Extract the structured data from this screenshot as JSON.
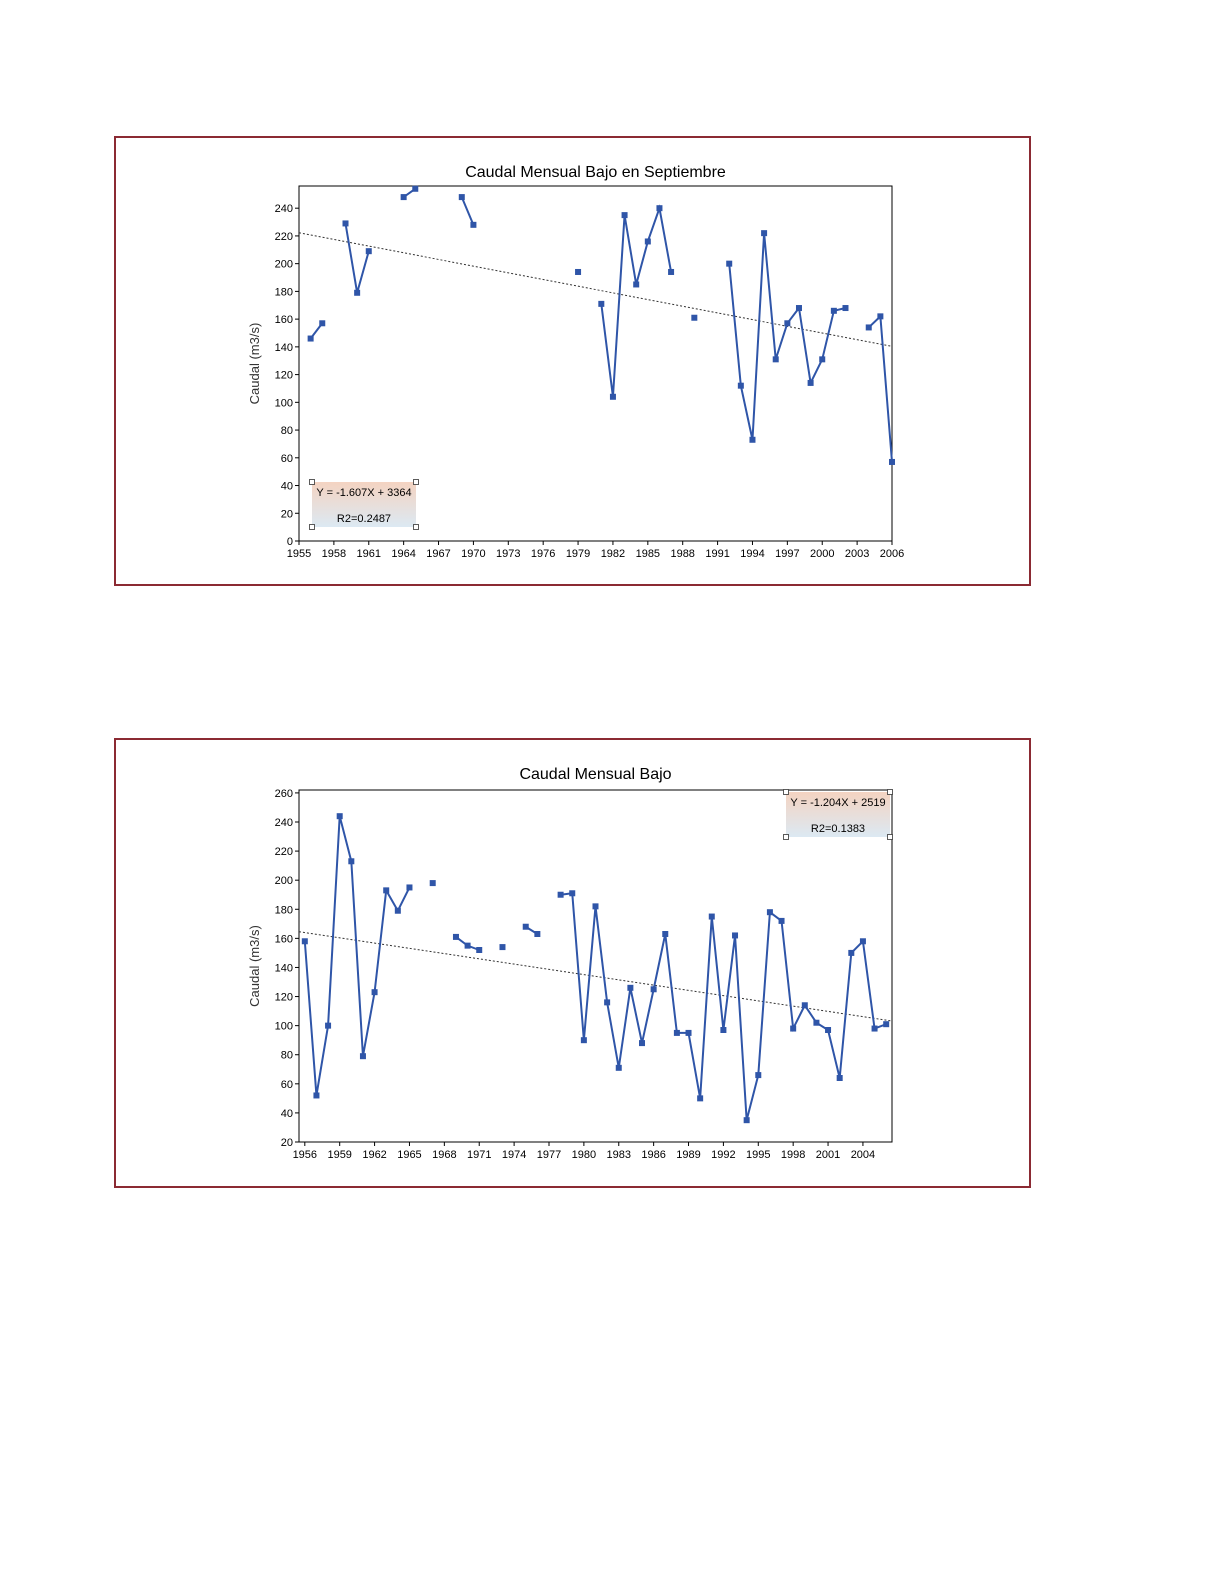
{
  "colors": {
    "border": "#8b2a33",
    "series": "#2f55a8",
    "trend": "#333333",
    "eq_top": "#f4d3c1",
    "eq_bottom": "#dce9f3"
  },
  "chart_data": [
    {
      "type": "line",
      "title": "Caudal Mensual Bajo en Septiembre",
      "ylabel": "Caudal (m3/s)",
      "xlabel": "",
      "xlim": [
        1955,
        2006
      ],
      "ylim": [
        0,
        256
      ],
      "xticks": [
        "1955",
        "1958",
        "1961",
        "1964",
        "1967",
        "1970",
        "1973",
        "1976",
        "1979",
        "1982",
        "1985",
        "1988",
        "1991",
        "1994",
        "1997",
        "2000",
        "2003",
        "2006"
      ],
      "yticks": [
        "0",
        "20",
        "40",
        "60",
        "80",
        "100",
        "120",
        "140",
        "160",
        "180",
        "200",
        "220",
        "240"
      ],
      "grid": false,
      "series": [
        {
          "x": [
            1956,
            1957,
            1958,
            1959,
            1960,
            1961,
            1962,
            1963,
            1964,
            1965,
            1966,
            1967,
            1968,
            1969,
            1970,
            1971,
            1972,
            1973,
            1974,
            1975,
            1976,
            1977,
            1978,
            1979,
            1980,
            1981,
            1982,
            1983,
            1984,
            1985,
            1986,
            1987,
            1988,
            1989,
            1990,
            1991,
            1992,
            1993,
            1994,
            1995,
            1996,
            1997,
            1998,
            1999,
            2000,
            2001,
            2002,
            2003,
            2004,
            2005,
            2006
          ],
          "y": [
            146,
            157,
            null,
            229,
            179,
            209,
            null,
            null,
            248,
            254,
            null,
            null,
            null,
            248,
            228,
            null,
            null,
            null,
            null,
            null,
            null,
            null,
            null,
            194,
            null,
            171,
            104,
            235,
            185,
            216,
            240,
            194,
            null,
            161,
            null,
            null,
            200,
            112,
            73,
            222,
            131,
            157,
            168,
            114,
            131,
            166,
            168,
            null,
            154,
            162,
            57
          ]
        }
      ],
      "trendline": {
        "slope": -1.607,
        "intercept": 3364,
        "x_start": 1955,
        "x_end": 2006
      },
      "equation": {
        "line1": "Y = -1.607X + 3364",
        "line2": "R2=0.2487",
        "placement": "bottom-left"
      }
    },
    {
      "type": "line",
      "title": "Caudal Mensual Bajo",
      "ylabel": "Caudal (m3/s)",
      "xlabel": "",
      "xlim": [
        1955.5,
        2006.5
      ],
      "ylim": [
        20,
        262
      ],
      "xticks": [
        "1956",
        "1959",
        "1962",
        "1965",
        "1968",
        "1971",
        "1974",
        "1977",
        "1980",
        "1983",
        "1986",
        "1989",
        "1992",
        "1995",
        "1998",
        "2001",
        "2004"
      ],
      "yticks": [
        "20",
        "40",
        "60",
        "80",
        "100",
        "120",
        "140",
        "160",
        "180",
        "200",
        "220",
        "240",
        "260"
      ],
      "grid": false,
      "series": [
        {
          "x": [
            1956,
            1957,
            1958,
            1959,
            1960,
            1961,
            1962,
            1963,
            1964,
            1965,
            1966,
            1967,
            1968,
            1969,
            1970,
            1971,
            1972,
            1973,
            1974,
            1975,
            1976,
            1977,
            1978,
            1979,
            1980,
            1981,
            1982,
            1983,
            1984,
            1985,
            1986,
            1987,
            1988,
            1989,
            1990,
            1991,
            1992,
            1993,
            1994,
            1995,
            1996,
            1997,
            1998,
            1999,
            2000,
            2001,
            2002,
            2003,
            2004,
            2005,
            2006
          ],
          "y": [
            158,
            52,
            100,
            244,
            213,
            79,
            123,
            193,
            179,
            195,
            null,
            198,
            null,
            161,
            155,
            152,
            null,
            154,
            null,
            168,
            163,
            null,
            190,
            191,
            90,
            182,
            116,
            71,
            126,
            88,
            125,
            163,
            95,
            95,
            50,
            175,
            97,
            162,
            35,
            66,
            178,
            172,
            98,
            114,
            102,
            97,
            64,
            150,
            158,
            98,
            101
          ]
        }
      ],
      "trendline": {
        "slope": -1.204,
        "intercept": 2519,
        "x_start": 1955.5,
        "x_end": 2006.5
      },
      "equation": {
        "line1": "Y = -1.204X + 2519",
        "line2": "R2=0.1383",
        "placement": "top-right"
      }
    }
  ]
}
